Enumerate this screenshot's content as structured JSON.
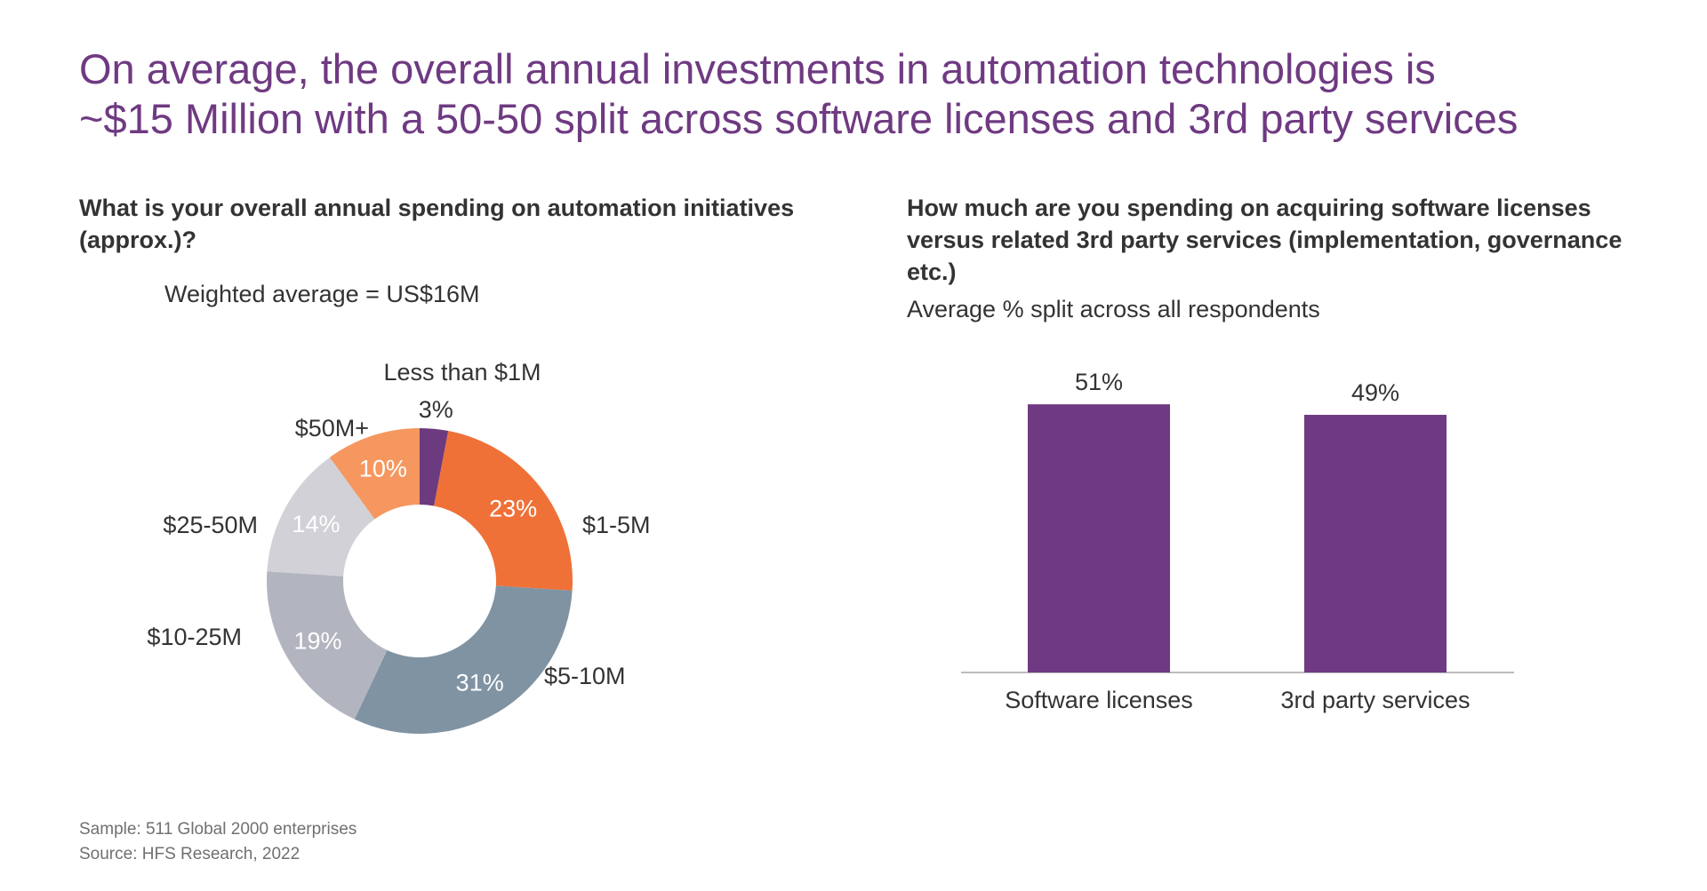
{
  "title": {
    "line1": "On average, the overall annual investments in automation technologies is",
    "line2": "~$15 Million with a 50-50 split across software licenses and 3rd party services"
  },
  "left": {
    "question": "What is your overall annual spending on automation initiatives (approx.)?",
    "subtitle": "Weighted average = US$16M"
  },
  "right": {
    "question": "How much are you spending on acquiring software licenses versus related 3rd party services (implementation, governance etc.)",
    "subtitle": "Average % split across all respondents"
  },
  "footer": {
    "sample": "Sample: 511 Global 2000 enterprises",
    "source": "Source: HFS Research, 2022"
  },
  "chart_data": [
    {
      "type": "pie",
      "variant": "donut",
      "categories": [
        "Less than $1M",
        "$1-5M",
        "$5-10M",
        "$10-25M",
        "$25-50M",
        "$50M+"
      ],
      "values": [
        3,
        23,
        31,
        19,
        14,
        10
      ],
      "value_labels": [
        "3%",
        "23%",
        "31%",
        "19%",
        "14%",
        "10%"
      ],
      "colors": [
        "#6b3a7f",
        "#ef7138",
        "#7f93a3",
        "#b2b5bf",
        "#d1d1d7",
        "#f5975f"
      ],
      "label_colors": [
        "#333333",
        "#ffffff",
        "#ffffff",
        "#ffffff",
        "#ffffff",
        "#ffffff"
      ]
    },
    {
      "type": "bar",
      "categories": [
        "Software licenses",
        "3rd party services"
      ],
      "values": [
        51,
        49
      ],
      "value_labels": [
        "51%",
        "49%"
      ],
      "color": "#6f3a82",
      "ylim": [
        0,
        62
      ]
    }
  ]
}
